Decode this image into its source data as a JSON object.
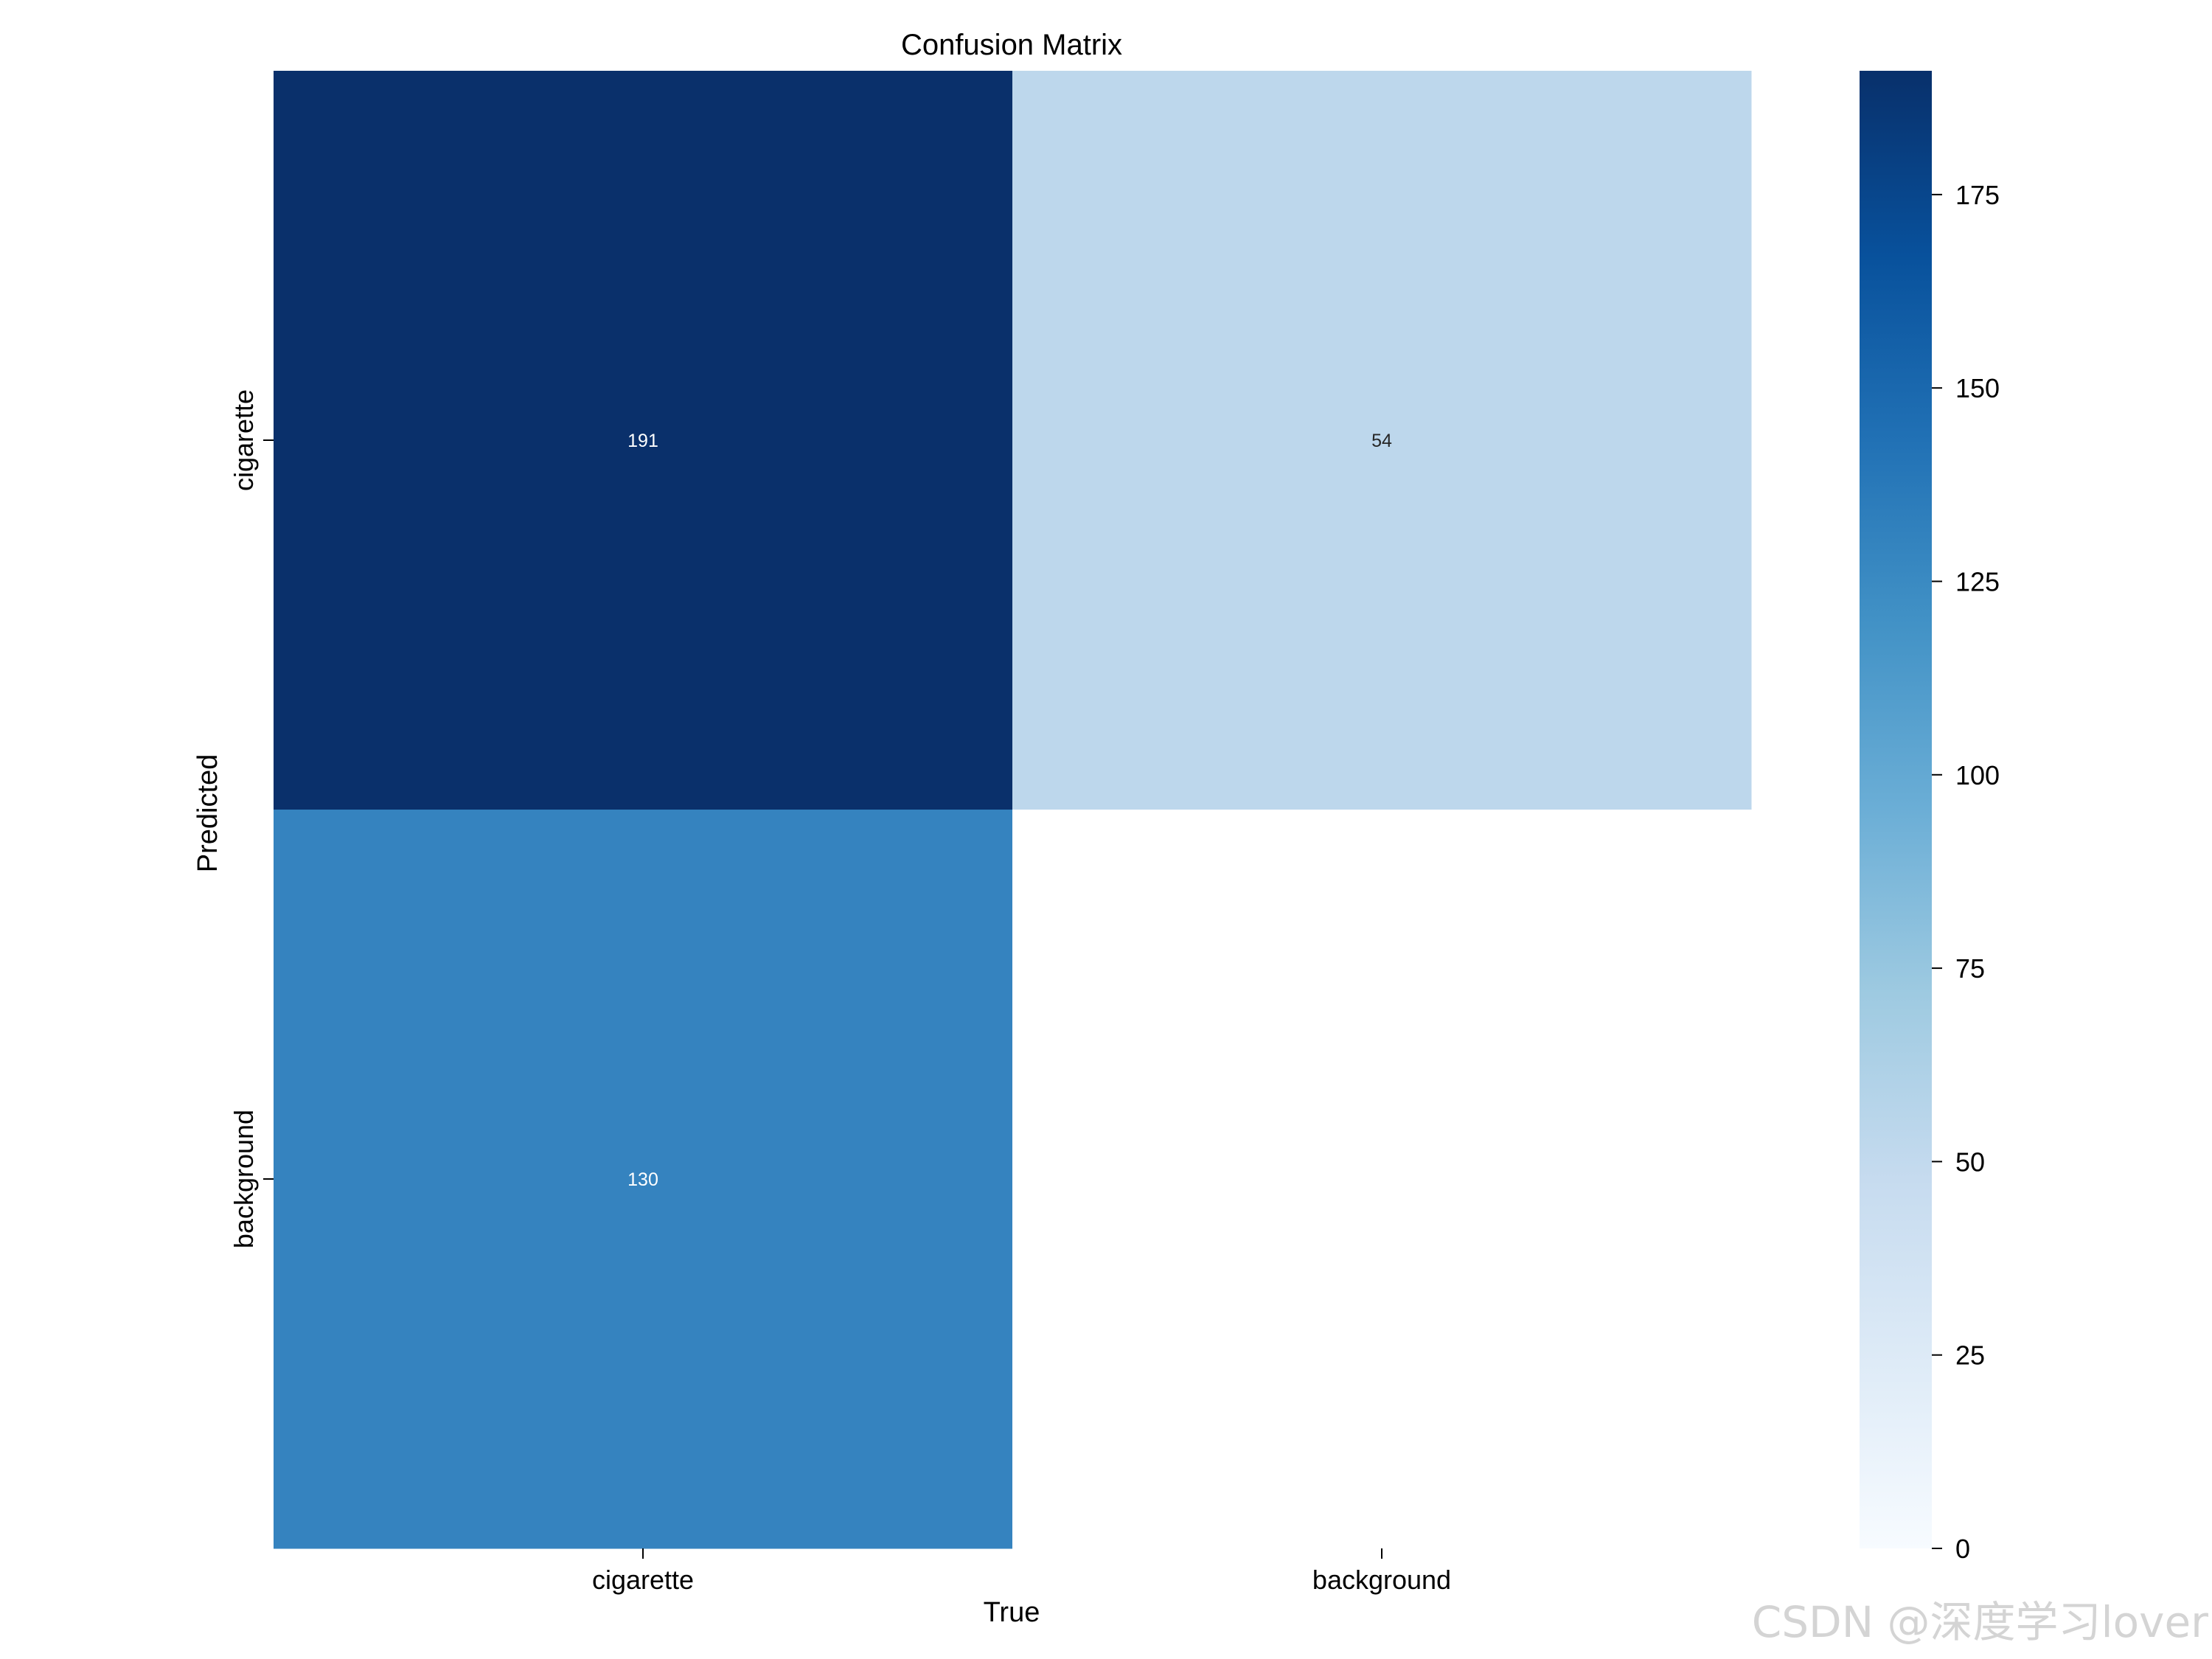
{
  "chart_data": {
    "type": "heatmap",
    "title": "Confusion Matrix",
    "xlabel": "True",
    "ylabel": "Predicted",
    "x_categories": [
      "cigarette",
      "background"
    ],
    "y_categories": [
      "cigarette",
      "background"
    ],
    "values": [
      [
        191,
        54
      ],
      [
        130,
        null
      ]
    ],
    "cell_labels": [
      [
        "191",
        "54"
      ],
      [
        "130",
        ""
      ]
    ],
    "colormap": "Blues",
    "colorbar": {
      "range": [
        0,
        191
      ],
      "ticks": [
        0,
        25,
        50,
        75,
        100,
        125,
        150,
        175
      ],
      "tick_labels": [
        "0",
        "25",
        "50",
        "75",
        "100",
        "125",
        "150",
        "175"
      ]
    },
    "cell_colors": [
      [
        "#0a306b",
        "#bdd7ec"
      ],
      [
        "#3583bf",
        "#ffffff"
      ]
    ],
    "text_colors": [
      [
        "#ffffff",
        "#262626"
      ],
      [
        "#ffffff",
        "#262626"
      ]
    ]
  },
  "watermark": "CSDN @深度学习lover"
}
